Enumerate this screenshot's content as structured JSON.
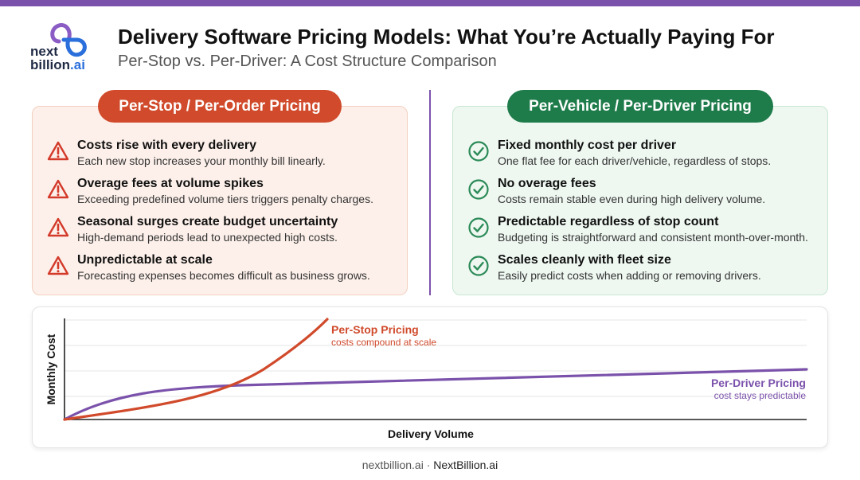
{
  "colors": {
    "accent_purple": "#7b52ab",
    "stop_orange": "#d04a2b",
    "driver_green": "#1e7b4a",
    "left_panel_bg": "#fdf0ea",
    "left_panel_border": "#f3cfc0",
    "right_panel_bg": "#eef8f1",
    "right_panel_border": "#c7e6d2",
    "warning_red": "#d33a2a",
    "check_green": "#2b8a57",
    "logo_purple": "#8a5cc4",
    "logo_blue": "#2a6fdb"
  },
  "logo": {
    "line1": "next",
    "line2": "billion",
    "suffix": ".ai"
  },
  "header": {
    "title": "Delivery Software Pricing Models: What You’re Actually Paying For",
    "subtitle": "Per-Stop vs. Per-Driver: A Cost Structure Comparison"
  },
  "left": {
    "title": "Per-Stop / Per-Order Pricing",
    "items": [
      {
        "icon": "warning-icon",
        "heading": "Costs rise with every delivery",
        "desc": "Each new stop increases your monthly bill linearly."
      },
      {
        "icon": "warning-icon",
        "heading": "Overage fees at volume spikes",
        "desc": "Exceeding predefined volume tiers triggers penalty charges."
      },
      {
        "icon": "warning-icon",
        "heading": "Seasonal surges create budget uncertainty",
        "desc": "High-demand periods lead to unexpected high costs."
      },
      {
        "icon": "warning-icon",
        "heading": "Unpredictable at scale",
        "desc": "Forecasting expenses becomes difficult as business grows."
      }
    ]
  },
  "right": {
    "title": "Per-Vehicle / Per-Driver Pricing",
    "items": [
      {
        "icon": "check-circle-icon",
        "heading": "Fixed monthly cost per driver",
        "desc": "One flat fee for each driver/vehicle, regardless of stops."
      },
      {
        "icon": "check-circle-icon",
        "heading": "No overage fees",
        "desc": "Costs remain stable even during high delivery volume."
      },
      {
        "icon": "check-circle-icon",
        "heading": "Predictable regardless of stop count",
        "desc": "Budgeting is straightforward and consistent month-over-month."
      },
      {
        "icon": "check-circle-icon",
        "heading": "Scales cleanly with fleet size",
        "desc": "Easily predict costs when adding or removing drivers."
      }
    ]
  },
  "chart": {
    "xlabel": "Delivery Volume",
    "ylabel": "Monthly Cost",
    "series": [
      {
        "name": "Per-Stop Pricing",
        "note": "costs compound at scale",
        "color": "#d04a2b",
        "shape": "exponential"
      },
      {
        "name": "Per-Driver Pricing",
        "note": "cost stays predictable",
        "color": "#7b52ab",
        "shape": "flattening"
      }
    ],
    "grid": true
  },
  "footer": {
    "domain": "nextbillion.ai",
    "separator": " · ",
    "brand": "NextBillion.ai"
  }
}
